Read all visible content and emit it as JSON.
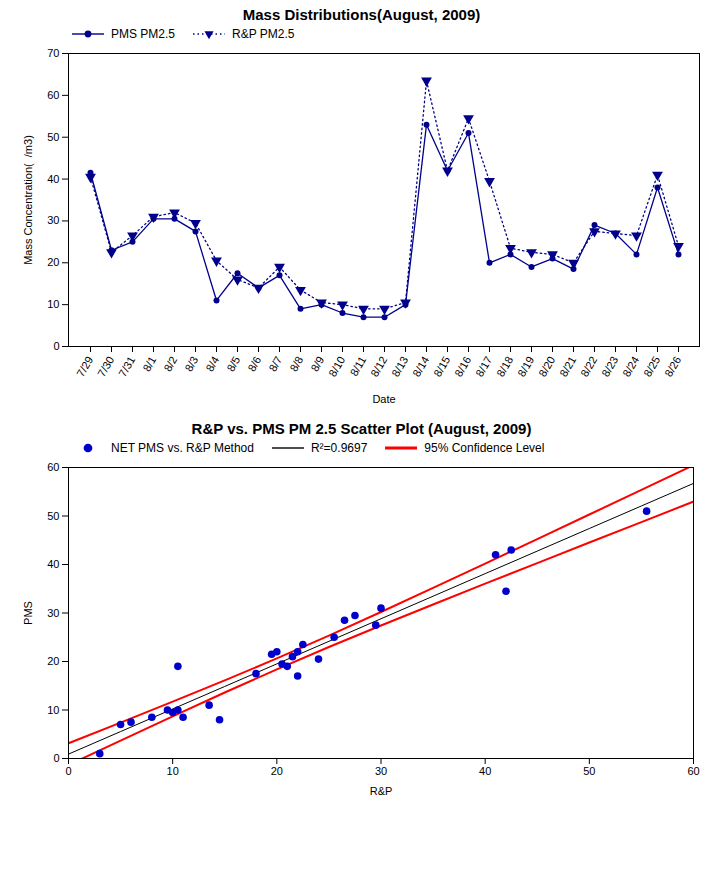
{
  "chart_data": [
    {
      "type": "line",
      "title": "Mass Distributions(August, 2009)",
      "xlabel": "Date",
      "ylabel": "Mass Concentration(  /m3)",
      "categories": [
        "7/29",
        "7/30",
        "7/31",
        "8/1",
        "8/2",
        "8/3",
        "8/4",
        "8/5",
        "8/6",
        "8/7",
        "8/8",
        "8/9",
        "8/10",
        "8/11",
        "8/12",
        "8/13",
        "8/14",
        "8/15",
        "8/16",
        "8/17",
        "8/18",
        "8/19",
        "8/20",
        "8/21",
        "8/22",
        "8/23",
        "8/24",
        "8/25",
        "8/26"
      ],
      "series": [
        {
          "name": "PMS PM2.5",
          "color": "#00008b",
          "marker": "circle",
          "line_style": "solid",
          "values": [
            41.5,
            23.0,
            25.0,
            30.5,
            30.5,
            27.5,
            11.0,
            17.5,
            14.0,
            17.0,
            9.0,
            10.0,
            8.0,
            7.0,
            7.0,
            10.0,
            53.0,
            42.0,
            51.0,
            20.0,
            22.0,
            19.0,
            21.0,
            18.5,
            29.0,
            27.0,
            22.0,
            38.0,
            22.0
          ]
        },
        {
          "name": "R&P PM2.5",
          "color": "#00008b",
          "marker": "triangle-down",
          "line_style": "dotted",
          "values": [
            40.5,
            22.5,
            26.5,
            31.0,
            32.0,
            29.5,
            20.5,
            16.0,
            14.0,
            19.0,
            13.5,
            10.5,
            10.0,
            9.0,
            9.0,
            10.5,
            63.5,
            42.0,
            54.5,
            39.5,
            23.5,
            22.5,
            22.0,
            20.0,
            27.5,
            27.0,
            26.5,
            41.0,
            24.0
          ]
        }
      ],
      "ylim": [
        0,
        70
      ],
      "yticks": [
        0,
        10,
        20,
        30,
        40,
        50,
        60,
        70
      ],
      "legend": "upper left",
      "grid": false
    },
    {
      "type": "scatter",
      "title": "R&P vs. PMS PM 2.5 Scatter Plot (August, 2009)",
      "xlabel": "R&P",
      "ylabel": "PMS",
      "series": [
        {
          "name": "NET PMS vs. R&P Method",
          "type": "scatter",
          "color": "#0000cd",
          "marker": "circle",
          "x": [
            3.0,
            5.0,
            6.0,
            8.0,
            9.5,
            10.0,
            10.5,
            10.5,
            11.0,
            13.5,
            14.5,
            18.0,
            19.5,
            20.0,
            20.5,
            21.0,
            21.5,
            22.0,
            22.0,
            22.5,
            24.0,
            25.5,
            26.5,
            27.5,
            29.5,
            30.0,
            41.0,
            42.0,
            42.5,
            55.5
          ],
          "values": [
            1.0,
            7.0,
            7.5,
            8.5,
            10.0,
            9.5,
            10.0,
            19.0,
            8.5,
            11.0,
            8.0,
            17.5,
            21.5,
            22.0,
            19.5,
            19.0,
            21.0,
            17.0,
            22.0,
            23.5,
            20.5,
            25.0,
            28.5,
            29.5,
            27.5,
            31.0,
            42.0,
            34.5,
            43.0,
            51.0
          ]
        },
        {
          "name": "R²=0.9697",
          "type": "line",
          "color": "#000000",
          "line_style": "solid",
          "x": [
            0,
            5,
            10,
            15,
            20,
            25,
            30,
            35,
            40,
            45,
            50,
            55,
            60
          ],
          "values": [
            0.9021,
            5.5538,
            10.2055,
            14.8571,
            19.5088,
            24.1605,
            28.8121,
            33.4638,
            38.1155,
            42.7671,
            47.4188,
            52.0705,
            56.7222
          ]
        },
        {
          "name": "95% Confidence Level",
          "type": "line",
          "color": "#ff0000",
          "line_style": "solid",
          "x": [
            0,
            5,
            10,
            15,
            20,
            25,
            30,
            35,
            40,
            45,
            50,
            55,
            60
          ],
          "upper": [
            3.143,
            7.41,
            11.719,
            16.107,
            20.631,
            25.335,
            30.199,
            35.165,
            40.186,
            45.238,
            50.308,
            55.39,
            60.478
          ],
          "lower": [
            -1.339,
            3.698,
            8.692,
            13.607,
            18.387,
            22.986,
            27.425,
            31.763,
            36.045,
            40.296,
            44.529,
            48.751,
            52.966
          ]
        }
      ],
      "xlim": [
        0,
        60
      ],
      "ylim": [
        0,
        60
      ],
      "xticks": [
        0,
        10,
        20,
        30,
        40,
        50,
        60
      ],
      "yticks": [
        0,
        10,
        20,
        30,
        40,
        50,
        60
      ],
      "legend": "upper left",
      "grid": false
    }
  ]
}
